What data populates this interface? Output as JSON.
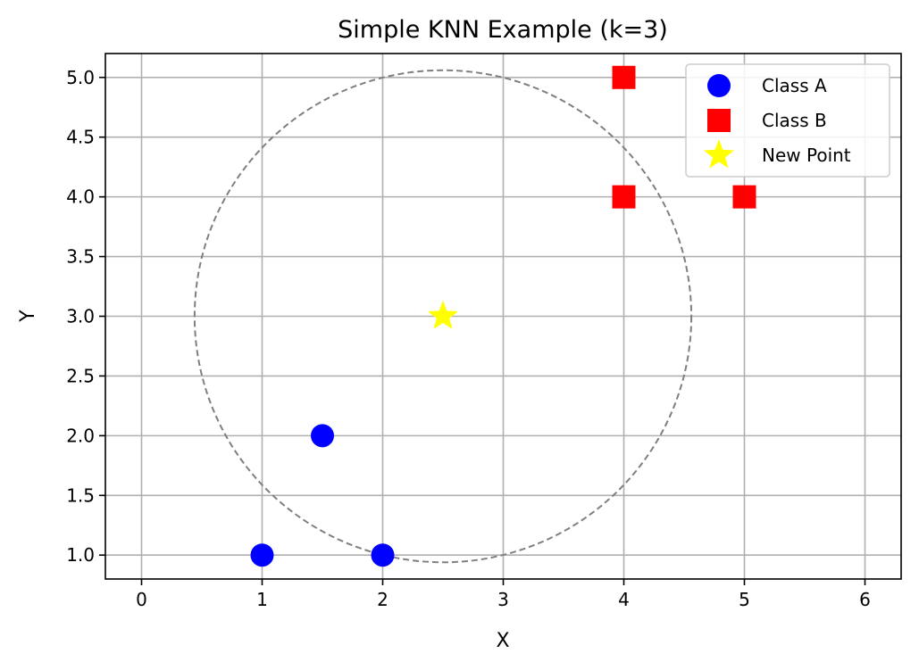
{
  "chart_data": {
    "type": "scatter",
    "title": "Simple KNN Example (k=3)",
    "xlabel": "X",
    "ylabel": "Y",
    "xlim": [
      -0.3,
      6.3
    ],
    "ylim": [
      0.8,
      5.2
    ],
    "x_ticks": [
      0,
      1,
      2,
      3,
      4,
      5,
      6
    ],
    "x_tick_labels": [
      "0",
      "1",
      "2",
      "3",
      "4",
      "5",
      "6"
    ],
    "y_ticks": [
      1.0,
      1.5,
      2.0,
      2.5,
      3.0,
      3.5,
      4.0,
      4.5,
      5.0
    ],
    "y_tick_labels": [
      "1.0",
      "1.5",
      "2.0",
      "2.5",
      "3.0",
      "3.5",
      "4.0",
      "4.5",
      "5.0"
    ],
    "grid": true,
    "legend_position": "top-right",
    "series": [
      {
        "name": "Class A",
        "marker": "circle",
        "color": "#0000ff",
        "points": [
          [
            1,
            1
          ],
          [
            2,
            1
          ],
          [
            1.5,
            2
          ]
        ]
      },
      {
        "name": "Class B",
        "marker": "square",
        "color": "#ff0000",
        "points": [
          [
            4,
            4
          ],
          [
            5,
            4
          ],
          [
            4,
            5
          ]
        ]
      },
      {
        "name": "New Point",
        "marker": "star",
        "color": "#ffff00",
        "points": [
          [
            2.5,
            3
          ]
        ]
      }
    ],
    "neighborhood_circle": {
      "center": [
        2.5,
        3
      ],
      "radius": 2.06,
      "color": "#7f7f7f",
      "style": "dashed"
    }
  }
}
